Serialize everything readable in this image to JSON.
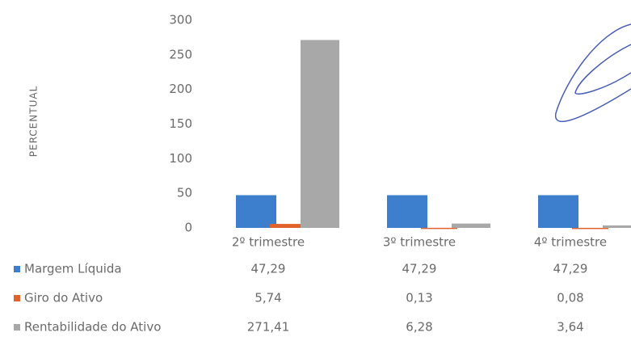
{
  "chart_data": {
    "type": "bar",
    "y_axis_label": "PERCENTUAL",
    "categories": [
      "2º trimestre",
      "3º trimestre",
      "4º trimestre"
    ],
    "series": [
      {
        "name": "Margem Líquida",
        "color": "#3d7fcc",
        "values": [
          47.29,
          47.29,
          47.29
        ],
        "value_labels": [
          "47,29",
          "47,29",
          "47,29"
        ]
      },
      {
        "name": "Giro do Ativo",
        "color": "#e2622c",
        "values": [
          5.74,
          0.13,
          0.08
        ],
        "value_labels": [
          "5,74",
          "0,13",
          "0,08"
        ]
      },
      {
        "name": "Rentabilidade do Ativo",
        "color": "#a8a8a8",
        "values": [
          271.41,
          6.28,
          3.64
        ],
        "value_labels": [
          "271,41",
          "6,28",
          "3,64"
        ]
      }
    ],
    "ylim": [
      0,
      300
    ],
    "yticks": [
      0,
      50,
      100,
      150,
      200,
      250,
      300
    ],
    "grid": false
  }
}
